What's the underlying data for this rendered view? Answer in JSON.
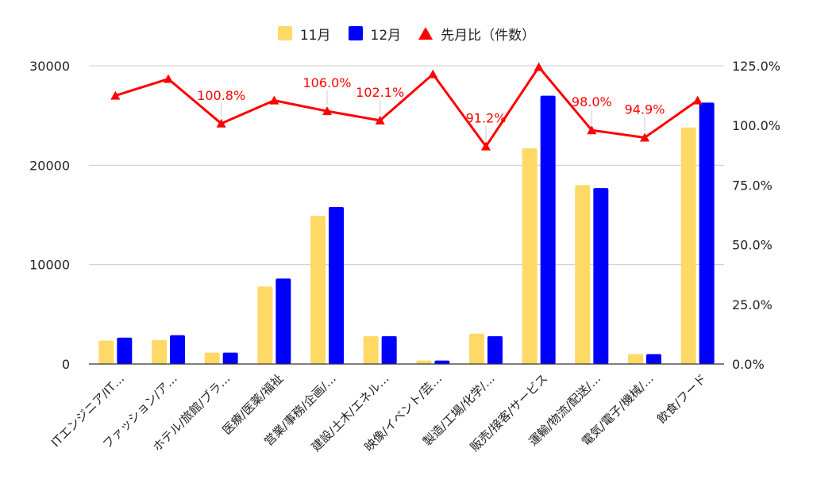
{
  "chart_data": {
    "type": "bar",
    "categories": [
      "ITエンジニア/IT…",
      "ファッション/ア…",
      "ホテル/旅館/ブラ…",
      "医療/医薬/福祉",
      "営業/事務/企画/…",
      "建設/土木/エネル…",
      "映像/イベント/芸…",
      "製造/工場/化学/…",
      "販売/接客/サービス",
      "運輸/物流/配送/…",
      "電気/電子/機械/…",
      "飲食/フード"
    ],
    "series": [
      {
        "name": "11月",
        "type": "bar",
        "axis": "left",
        "color": "#ffd966",
        "values": [
          2350,
          2400,
          1150,
          7800,
          14900,
          2800,
          350,
          3050,
          21700,
          18000,
          1000,
          23800
        ]
      },
      {
        "name": "12月",
        "type": "bar",
        "axis": "left",
        "color": "#0000ff",
        "values": [
          2650,
          2900,
          1150,
          8600,
          15800,
          2800,
          350,
          2800,
          27000,
          17700,
          1000,
          26300
        ]
      },
      {
        "name": "先月比（件数）",
        "type": "line",
        "axis": "right",
        "color": "#ff0000",
        "values": [
          112.5,
          119.5,
          100.8,
          110.5,
          106.0,
          102.1,
          121.5,
          91.2,
          124.5,
          98.0,
          94.9,
          110.5
        ],
        "labels": [
          "",
          "",
          "100.8%",
          "",
          "106.0%",
          "102.1%",
          "",
          "91.2%",
          "",
          "98.0%",
          "94.9%",
          ""
        ]
      }
    ],
    "y_left": {
      "ylim": [
        0,
        30000
      ],
      "ticks": [
        "0",
        "10000",
        "20000",
        "30000"
      ]
    },
    "y_right": {
      "ylim": [
        0,
        125
      ],
      "ticks": [
        "0.0%",
        "25.0%",
        "50.0%",
        "75.0%",
        "100.0%",
        "125.0%"
      ]
    },
    "grid": true,
    "legend_position": "top-center",
    "title": "",
    "xlabel": "",
    "ylabel": ""
  },
  "legend": {
    "items": [
      {
        "label": "11月",
        "color": "#ffd966",
        "shape": "square"
      },
      {
        "label": "12月",
        "color": "#0000ff",
        "shape": "square"
      },
      {
        "label": "先月比（件数）",
        "color": "#ff0000",
        "shape": "triangle"
      }
    ]
  }
}
